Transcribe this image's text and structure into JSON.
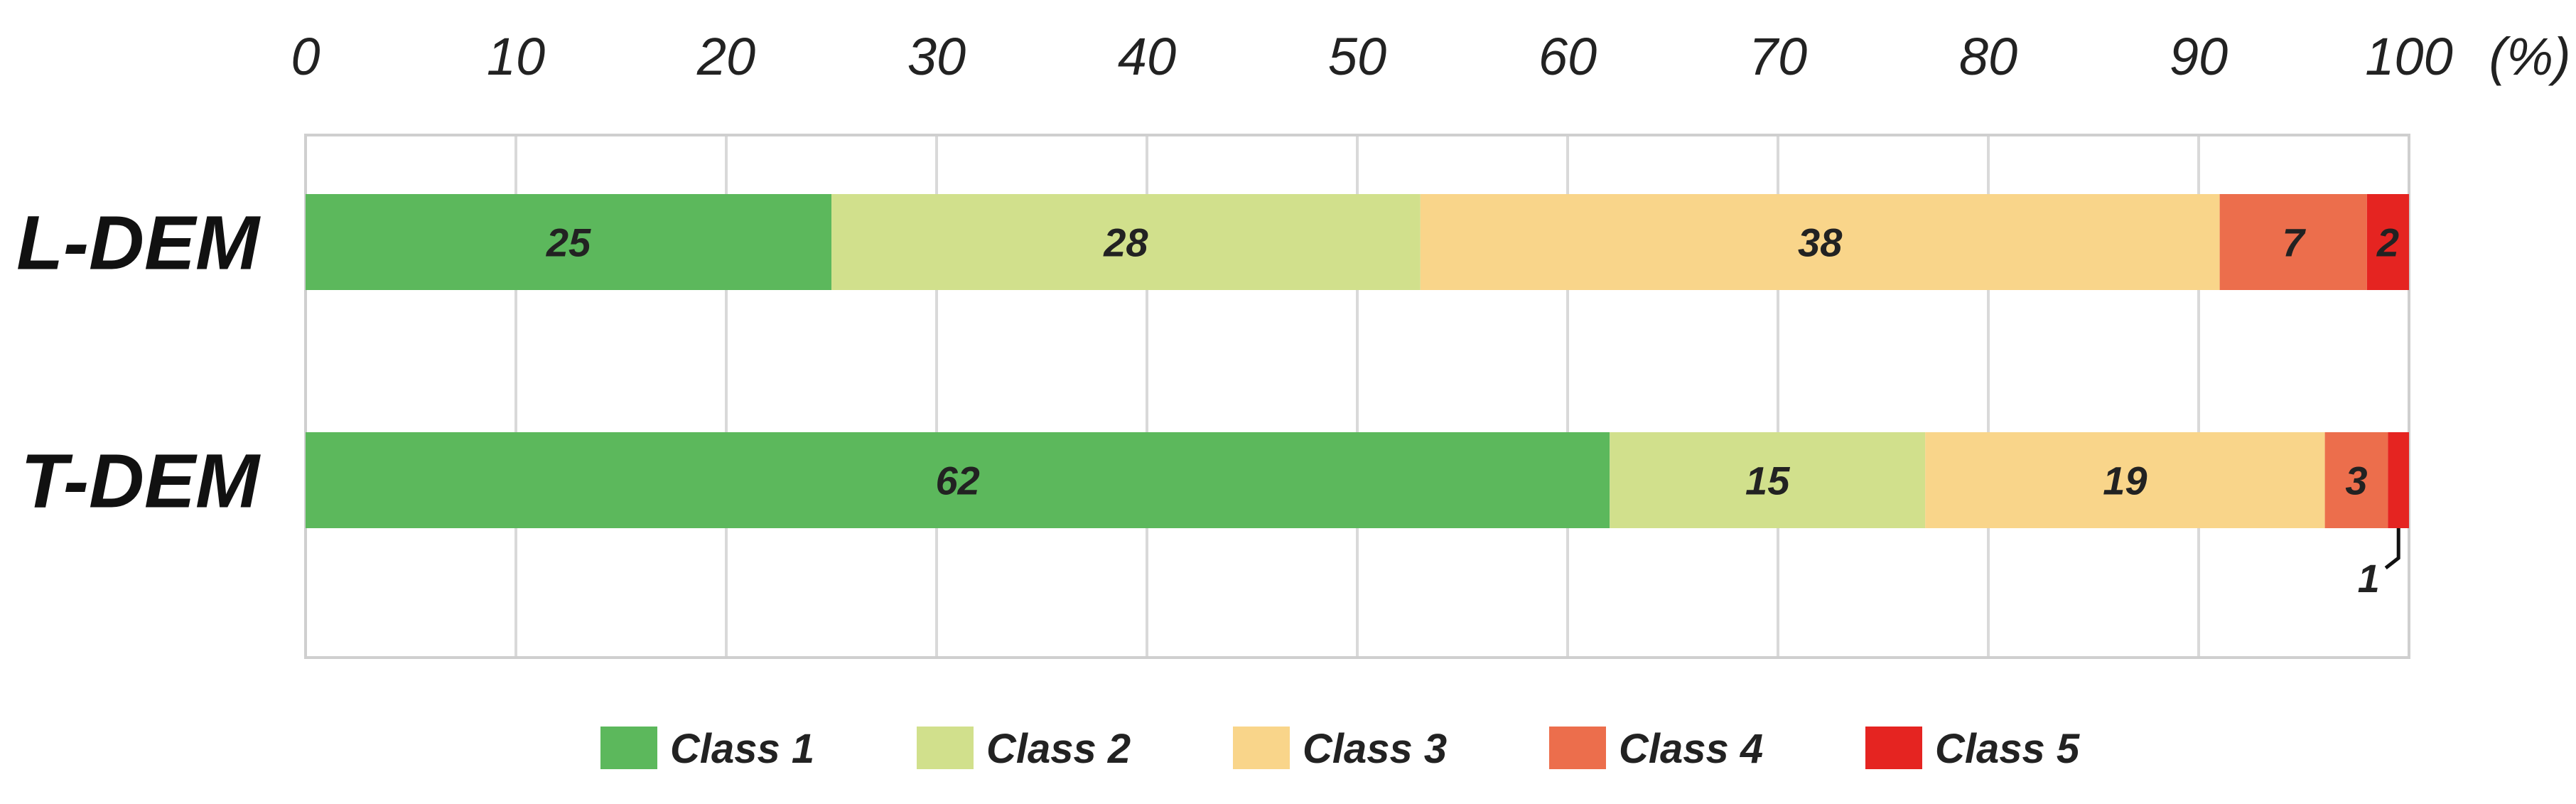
{
  "chart_data": {
    "type": "bar",
    "orientation": "horizontal",
    "stacked": true,
    "categories": [
      "L-DEM",
      "T-DEM"
    ],
    "series": [
      {
        "name": "Class 1",
        "color": "#5cb85c",
        "values": [
          25,
          62
        ]
      },
      {
        "name": "Class 2",
        "color": "#d1e08c",
        "values": [
          28,
          15
        ]
      },
      {
        "name": "Class 3",
        "color": "#f9d58a",
        "values": [
          38,
          19
        ]
      },
      {
        "name": "Class 4",
        "color": "#ec6e4c",
        "values": [
          7,
          3
        ]
      },
      {
        "name": "Class 5",
        "color": "#e52421",
        "values": [
          2,
          1
        ]
      }
    ],
    "x_ticks": [
      "0",
      "10",
      "20",
      "30",
      "40",
      "50",
      "60",
      "70",
      "80",
      "90",
      "100"
    ],
    "x_unit": "(%)",
    "xlim": [
      0,
      100
    ],
    "grid": true,
    "legend": "bottom",
    "callout": {
      "category": "T-DEM",
      "series": "Class 5",
      "label": "1"
    }
  }
}
